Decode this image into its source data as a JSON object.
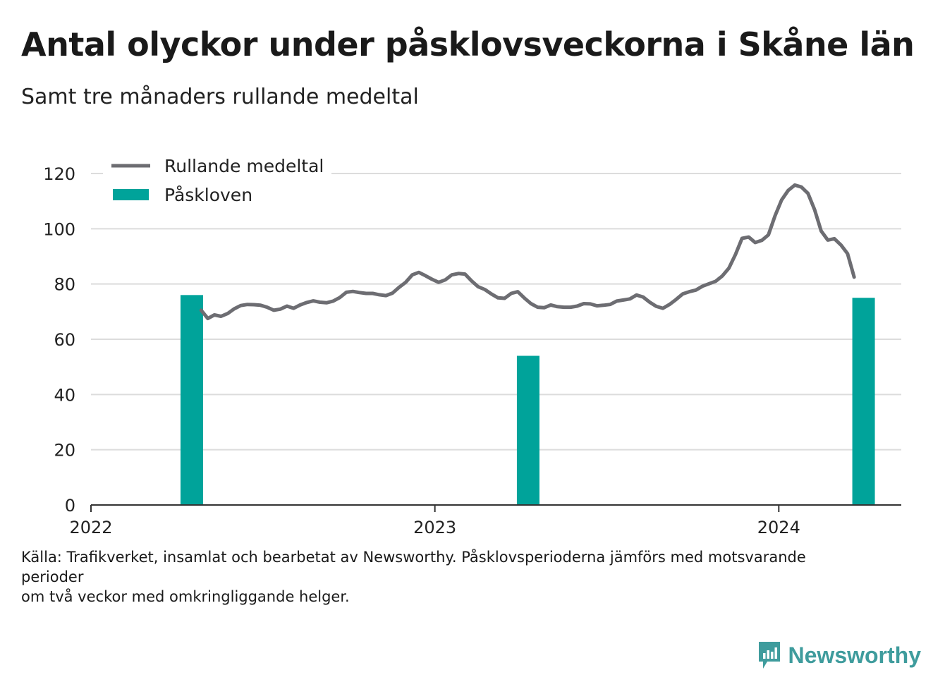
{
  "header": {
    "title": "Antal olyckor under påsklovsveckorna i Skåne län",
    "subtitle": "Samt tre månaders rullande medeltal"
  },
  "footer": {
    "source_line1": "Källa: Trafikverket, insamlat och bearbetat av Newsworthy. Påsklovsperioderna jämförs med motsvarande",
    "source_line2": "perioder",
    "source_line3": "om två veckor med omkringliggande helger."
  },
  "brand": {
    "name": "Newsworthy",
    "icon": "newsworthy-logo-icon",
    "color": "#3f9c9d"
  },
  "chart_data": {
    "type": "bar+line",
    "title": "Antal olyckor under påsklovsveckorna i Skåne län",
    "subtitle": "Samt tre månaders rullande medeltal",
    "ylim": [
      0,
      120
    ],
    "yticks": [
      0,
      20,
      40,
      60,
      80,
      100,
      120
    ],
    "xlim": [
      "2022-01-01",
      "2024-05-10"
    ],
    "xticks": [
      {
        "date": "2022-01-01",
        "label": "2022"
      },
      {
        "date": "2023-01-01",
        "label": "2023"
      },
      {
        "date": "2024-01-01",
        "label": "2024"
      }
    ],
    "grid": true,
    "legend_position": "top-left",
    "series": [
      {
        "name": "Rullande medeltal",
        "type": "line",
        "color": "#6d6d72",
        "points": [
          [
            "2022-04-28",
            70.5
          ],
          [
            "2022-05-05",
            67.5
          ],
          [
            "2022-05-12",
            68.8
          ],
          [
            "2022-05-19",
            68.3
          ],
          [
            "2022-05-26",
            69.3
          ],
          [
            "2022-06-02",
            71.0
          ],
          [
            "2022-06-09",
            72.2
          ],
          [
            "2022-06-16",
            72.6
          ],
          [
            "2022-06-23",
            72.5
          ],
          [
            "2022-06-30",
            72.3
          ],
          [
            "2022-07-07",
            71.6
          ],
          [
            "2022-07-14",
            70.5
          ],
          [
            "2022-07-21",
            70.9
          ],
          [
            "2022-07-28",
            72.0
          ],
          [
            "2022-08-04",
            71.2
          ],
          [
            "2022-08-11",
            72.4
          ],
          [
            "2022-08-18",
            73.3
          ],
          [
            "2022-08-25",
            73.9
          ],
          [
            "2022-09-01",
            73.4
          ],
          [
            "2022-09-08",
            73.2
          ],
          [
            "2022-09-15",
            73.8
          ],
          [
            "2022-09-22",
            75.1
          ],
          [
            "2022-09-29",
            77.0
          ],
          [
            "2022-10-06",
            77.3
          ],
          [
            "2022-10-13",
            76.9
          ],
          [
            "2022-10-20",
            76.6
          ],
          [
            "2022-10-27",
            76.6
          ],
          [
            "2022-11-03",
            76.1
          ],
          [
            "2022-11-10",
            75.8
          ],
          [
            "2022-11-17",
            76.7
          ],
          [
            "2022-11-24",
            78.8
          ],
          [
            "2022-12-01",
            80.6
          ],
          [
            "2022-12-08",
            83.3
          ],
          [
            "2022-12-15",
            84.2
          ],
          [
            "2022-12-22",
            83.0
          ],
          [
            "2022-12-29",
            81.7
          ],
          [
            "2023-01-05",
            80.6
          ],
          [
            "2023-01-12",
            81.5
          ],
          [
            "2023-01-19",
            83.3
          ],
          [
            "2023-01-26",
            83.8
          ],
          [
            "2023-02-02",
            83.6
          ],
          [
            "2023-02-09",
            81.1
          ],
          [
            "2023-02-16",
            79.0
          ],
          [
            "2023-02-23",
            78.0
          ],
          [
            "2023-03-02",
            76.4
          ],
          [
            "2023-03-09",
            75.0
          ],
          [
            "2023-03-16",
            74.8
          ],
          [
            "2023-03-23",
            76.6
          ],
          [
            "2023-03-30",
            77.2
          ],
          [
            "2023-04-06",
            74.9
          ],
          [
            "2023-04-13",
            72.9
          ],
          [
            "2023-04-20",
            71.6
          ],
          [
            "2023-04-27",
            71.4
          ],
          [
            "2023-05-04",
            72.4
          ],
          [
            "2023-05-11",
            71.8
          ],
          [
            "2023-05-18",
            71.6
          ],
          [
            "2023-05-25",
            71.6
          ],
          [
            "2023-06-01",
            72.0
          ],
          [
            "2023-06-08",
            72.9
          ],
          [
            "2023-06-15",
            72.8
          ],
          [
            "2023-06-22",
            72.1
          ],
          [
            "2023-06-29",
            72.3
          ],
          [
            "2023-07-06",
            72.6
          ],
          [
            "2023-07-13",
            73.8
          ],
          [
            "2023-07-20",
            74.2
          ],
          [
            "2023-07-27",
            74.6
          ],
          [
            "2023-08-03",
            76.0
          ],
          [
            "2023-08-10",
            75.3
          ],
          [
            "2023-08-17",
            73.4
          ],
          [
            "2023-08-24",
            71.9
          ],
          [
            "2023-08-31",
            71.2
          ],
          [
            "2023-09-07",
            72.6
          ],
          [
            "2023-09-14",
            74.4
          ],
          [
            "2023-09-21",
            76.4
          ],
          [
            "2023-09-28",
            77.2
          ],
          [
            "2023-10-05",
            77.8
          ],
          [
            "2023-10-12",
            79.2
          ],
          [
            "2023-10-19",
            80.1
          ],
          [
            "2023-10-26",
            81.0
          ],
          [
            "2023-11-02",
            82.9
          ],
          [
            "2023-11-09",
            85.7
          ],
          [
            "2023-11-16",
            90.7
          ],
          [
            "2023-11-23",
            96.5
          ],
          [
            "2023-11-30",
            97.0
          ],
          [
            "2023-12-07",
            95.0
          ],
          [
            "2023-12-14",
            95.8
          ],
          [
            "2023-12-21",
            97.8
          ],
          [
            "2023-12-28",
            104.7
          ],
          [
            "2024-01-04",
            110.4
          ],
          [
            "2024-01-11",
            113.9
          ],
          [
            "2024-01-18",
            115.8
          ],
          [
            "2024-01-25",
            115.1
          ],
          [
            "2024-02-01",
            112.8
          ],
          [
            "2024-02-08",
            106.9
          ],
          [
            "2024-02-15",
            99.2
          ],
          [
            "2024-02-22",
            95.9
          ],
          [
            "2024-02-29",
            96.4
          ],
          [
            "2024-03-07",
            94.1
          ],
          [
            "2024-03-14",
            91.0
          ],
          [
            "2024-03-21",
            82.5
          ]
        ]
      },
      {
        "name": "Påskloven",
        "type": "bar",
        "color": "#00a39a",
        "points": [
          [
            "2022-04-18",
            76
          ],
          [
            "2023-04-10",
            54
          ],
          [
            "2024-03-31",
            75
          ]
        ]
      }
    ]
  }
}
